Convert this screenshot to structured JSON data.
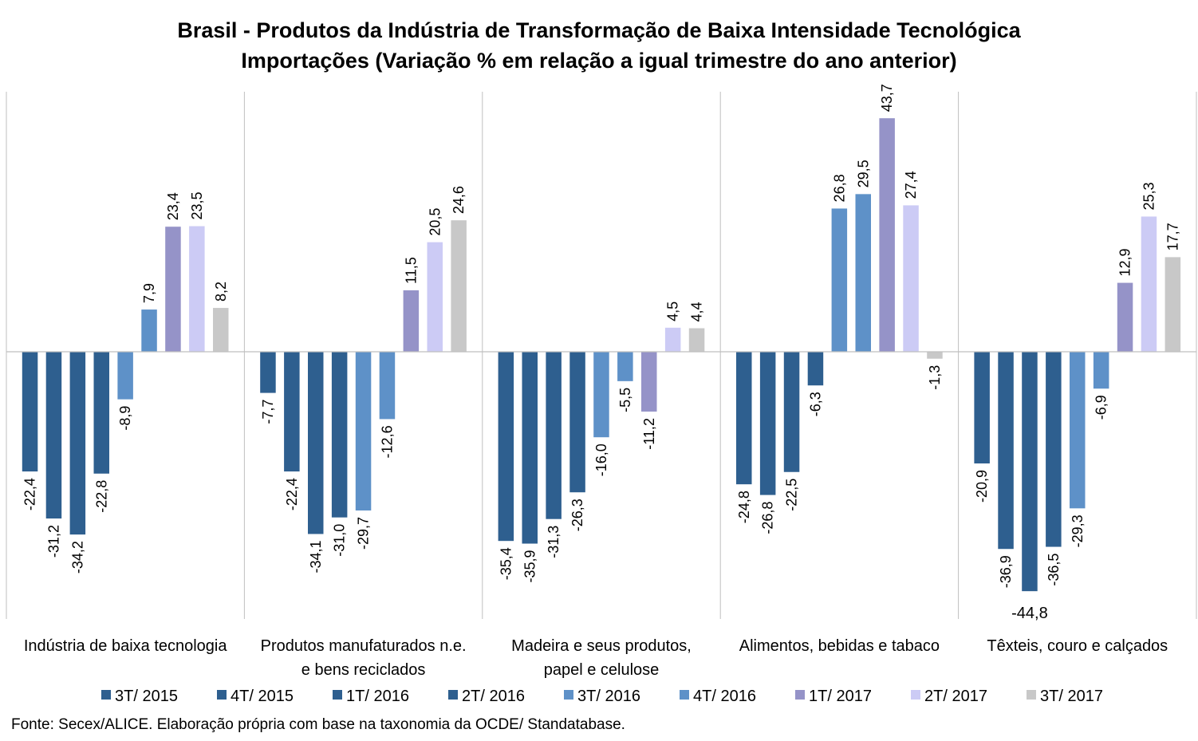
{
  "chart_data": {
    "type": "bar",
    "title": "Brasil - Produtos da Indústria de Transformação de Baixa Intensidade Tecnológica",
    "subtitle": "Importações (Variação % em relação a igual trimestre do ano anterior)",
    "categories": [
      [
        "Indústria de baixa tecnologia"
      ],
      [
        "Produtos manufaturados n.e.",
        "e bens reciclados"
      ],
      [
        "Madeira e seus produtos,",
        "papel e celulose"
      ],
      [
        "Alimentos, bebidas e tabaco"
      ],
      [
        "Têxteis, couro e calçados"
      ]
    ],
    "series": [
      {
        "name": "3T/ 2015",
        "color": "#2e5f8f",
        "values": [
          -22.4,
          -7.7,
          -35.4,
          -24.8,
          -20.9
        ],
        "labels": [
          "-22,4",
          "-7,7",
          "-35,4",
          "-24,8",
          "-20,9"
        ]
      },
      {
        "name": "4T/ 2015",
        "color": "#2e5f8f",
        "values": [
          -31.2,
          -22.4,
          -35.9,
          -26.8,
          -36.9
        ],
        "labels": [
          "-31,2",
          "-22,4",
          "-35,9",
          "-26,8",
          "-36,9"
        ]
      },
      {
        "name": "1T/ 2016",
        "color": "#2e5f8f",
        "values": [
          -34.2,
          -34.1,
          -31.3,
          -22.5,
          -44.8
        ],
        "labels": [
          "-34,2",
          "-34,1",
          "-31,3",
          "-22,5",
          "-44,8"
        ]
      },
      {
        "name": "2T/ 2016",
        "color": "#2e5f8f",
        "values": [
          -22.8,
          -31.0,
          -26.3,
          -6.3,
          -36.5
        ],
        "labels": [
          "-22,8",
          "-31,0",
          "-26,3",
          "-6,3",
          "-36,5"
        ]
      },
      {
        "name": "3T/ 2016",
        "color": "#5e91c8",
        "values": [
          -8.9,
          -29.7,
          -16.0,
          26.8,
          -29.3
        ],
        "labels": [
          "-8,9",
          "-29,7",
          "-16,0",
          "26,8",
          "-29,3"
        ]
      },
      {
        "name": "4T/ 2016",
        "color": "#5e91c8",
        "values": [
          7.9,
          -12.6,
          -5.5,
          29.5,
          -6.9
        ],
        "labels": [
          "7,9",
          "-12,6",
          "-5,5",
          "29,5",
          "-6,9"
        ]
      },
      {
        "name": "1T/ 2017",
        "color": "#9593c8",
        "values": [
          23.4,
          11.5,
          -11.2,
          43.7,
          12.9
        ],
        "labels": [
          "23,4",
          "11,5",
          "-11,2",
          "43,7",
          "12,9"
        ]
      },
      {
        "name": "2T/ 2017",
        "color": "#cccbf5",
        "values": [
          23.5,
          20.5,
          4.5,
          27.4,
          25.3
        ],
        "labels": [
          "23,5",
          "20,5",
          "4,5",
          "27,4",
          "25,3"
        ]
      },
      {
        "name": "3T/ 2017",
        "color": "#c8c8c8",
        "values": [
          8.2,
          24.6,
          4.4,
          -1.3,
          17.7
        ],
        "labels": [
          "8,2",
          "24,6",
          "4,4",
          "-1,3",
          "17,7"
        ]
      }
    ],
    "ylim": [
      -49,
      49
    ],
    "grid": false,
    "legend_position": "bottom",
    "source": "Fonte: Secex/ALICE. Elaboração própria com base na taxonomia da OCDE/ Standatabase."
  }
}
